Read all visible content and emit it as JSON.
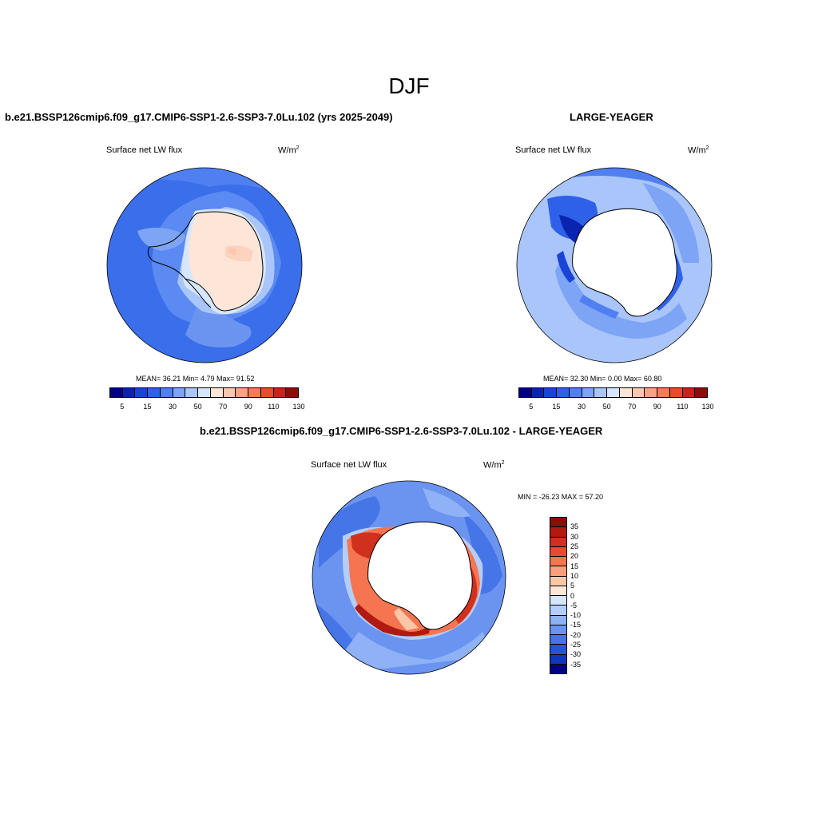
{
  "title": "DJF",
  "panels": [
    {
      "title": "b.e21.BSSP126cmip6.f09_g17.CMIP6-SSP1-2.6-SSP3-7.0Lu.102 (yrs 2025-2049)",
      "variable": "Surface net LW flux",
      "units": "W/m",
      "units_exp": "2",
      "stats": "MEAN=  36.21  Min=   4.79  Max=  91.52",
      "colorbar": {
        "colors": [
          "#000080",
          "#0a24b0",
          "#1a44d8",
          "#2f60e8",
          "#4f7ff0",
          "#7ea4f5",
          "#a9c5fa",
          "#d6e6fc",
          "#fde6d8",
          "#fcc7af",
          "#f9a284",
          "#f47a58",
          "#ea4a2e",
          "#c9221a",
          "#8a0e08"
        ],
        "labels": [
          "5",
          "15",
          "30",
          "50",
          "70",
          "90",
          "110",
          "130"
        ]
      }
    },
    {
      "title": "LARGE-YEAGER",
      "variable": "Surface net LW flux",
      "units": "W/m",
      "units_exp": "2",
      "stats": "MEAN=  32.30  Min=   0.00  Max=  60.80",
      "colorbar": {
        "colors": [
          "#000080",
          "#0a24b0",
          "#1a44d8",
          "#2f60e8",
          "#4f7ff0",
          "#7ea4f5",
          "#a9c5fa",
          "#d6e6fc",
          "#fde6d8",
          "#fcc7af",
          "#f9a284",
          "#f47a58",
          "#ea4a2e",
          "#c9221a",
          "#8a0e08"
        ],
        "labels": [
          "5",
          "15",
          "30",
          "50",
          "70",
          "90",
          "110",
          "130"
        ]
      }
    },
    {
      "title": "b.e21.BSSP126cmip6.f09_g17.CMIP6-SSP1-2.6-SSP3-7.0Lu.102 - LARGE-YEAGER",
      "variable": "Surface net LW flux",
      "units": "W/m",
      "units_exp": "2",
      "stats": "MIN = -26.23 MAX =  57.20",
      "colorbar": {
        "colors": [
          "#8a0e08",
          "#b01a10",
          "#d0301e",
          "#e84c30",
          "#f57550",
          "#f9a07a",
          "#fcc7a8",
          "#fde8d8",
          "#d6e6fc",
          "#b4cdfa",
          "#8fb1f5",
          "#6a94f0",
          "#4575e6",
          "#2555d6",
          "#0f36b8",
          "#000080"
        ],
        "labels": [
          "35",
          "30",
          "25",
          "20",
          "15",
          "10",
          "5",
          "0",
          "-5",
          "-10",
          "-15",
          "-20",
          "-25",
          "-30",
          "-35"
        ]
      }
    }
  ]
}
